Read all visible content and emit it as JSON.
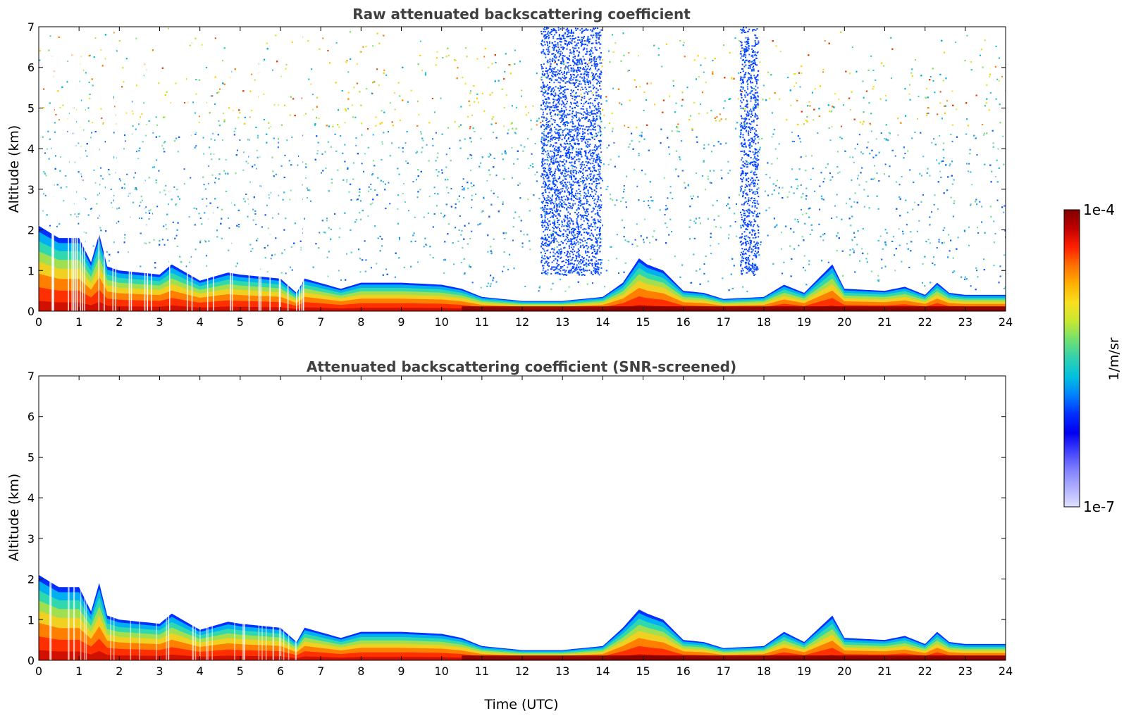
{
  "chart_data": [
    {
      "type": "heatmap",
      "id": "raw",
      "title": "Raw attenuated backscattering coefficient",
      "xlabel": "",
      "ylabel": "Altitude (km)",
      "xlim": [
        0,
        24
      ],
      "ylim": [
        0,
        7
      ],
      "xticks": [
        "0",
        "1",
        "2",
        "3",
        "4",
        "5",
        "6",
        "7",
        "8",
        "9",
        "10",
        "11",
        "12",
        "13",
        "14",
        "15",
        "16",
        "17",
        "18",
        "19",
        "20",
        "21",
        "22",
        "23",
        "24"
      ],
      "yticks": [
        "0",
        "1",
        "2",
        "3",
        "4",
        "5",
        "6",
        "7"
      ],
      "noise": true,
      "boundary_layer_top_km": {
        "x": [
          0,
          0.5,
          1.0,
          1.3,
          1.5,
          1.7,
          2.0,
          3.0,
          3.3,
          4.0,
          4.7,
          5.0,
          6.0,
          6.4,
          6.6,
          7.5,
          8.0,
          9.0,
          10.0,
          10.5,
          11.0,
          12.0,
          13.0,
          14.0,
          14.5,
          14.9,
          15.1,
          15.5,
          16.0,
          16.5,
          17.0,
          18.0,
          18.5,
          19.0,
          19.7,
          20.0,
          21.0,
          21.5,
          22.0,
          22.3,
          22.6,
          23.0,
          24.0
        ],
        "y": [
          2.1,
          1.8,
          1.8,
          1.2,
          1.9,
          1.1,
          1.0,
          0.9,
          1.15,
          0.75,
          0.95,
          0.9,
          0.8,
          0.45,
          0.8,
          0.55,
          0.7,
          0.7,
          0.65,
          0.55,
          0.35,
          0.25,
          0.25,
          0.35,
          0.7,
          1.3,
          1.15,
          1.0,
          0.5,
          0.45,
          0.3,
          0.35,
          0.65,
          0.45,
          1.15,
          0.55,
          0.5,
          0.6,
          0.4,
          0.7,
          0.45,
          0.4,
          0.4
        ]
      },
      "noise_free_gaps_h": [
        [
          12.45,
          12.6
        ],
        [
          13.85,
          14.05
        ],
        [
          17.85,
          17.95
        ]
      ],
      "blue_noise_columns_h": [
        [
          12.6,
          13.95
        ],
        [
          17.4,
          17.85
        ],
        [
          12.45,
          12.6
        ]
      ]
    },
    {
      "type": "heatmap",
      "id": "snr",
      "title": "Attenuated backscattering coefficient (SNR-screened)",
      "xlabel": "Time (UTC)",
      "ylabel": "Altitude (km)",
      "xlim": [
        0,
        24
      ],
      "ylim": [
        0,
        7
      ],
      "xticks": [
        "0",
        "1",
        "2",
        "3",
        "4",
        "5",
        "6",
        "7",
        "8",
        "9",
        "10",
        "11",
        "12",
        "13",
        "14",
        "15",
        "16",
        "17",
        "18",
        "19",
        "20",
        "21",
        "22",
        "23",
        "24"
      ],
      "yticks": [
        "0",
        "1",
        "2",
        "3",
        "4",
        "5",
        "6",
        "7"
      ],
      "noise": false,
      "boundary_layer_top_km": {
        "x": [
          0,
          0.5,
          1.0,
          1.3,
          1.5,
          1.7,
          2.0,
          3.0,
          3.3,
          4.0,
          4.7,
          5.0,
          6.0,
          6.4,
          6.6,
          7.5,
          8.0,
          9.0,
          10.0,
          10.5,
          11.0,
          12.0,
          13.0,
          14.0,
          14.5,
          14.9,
          15.1,
          15.5,
          16.0,
          16.5,
          17.0,
          18.0,
          18.5,
          19.0,
          19.7,
          20.0,
          21.0,
          21.5,
          22.0,
          22.3,
          22.6,
          23.0,
          24.0
        ],
        "y": [
          2.1,
          1.8,
          1.8,
          1.2,
          1.9,
          1.1,
          1.0,
          0.9,
          1.15,
          0.75,
          0.95,
          0.9,
          0.8,
          0.45,
          0.8,
          0.55,
          0.7,
          0.7,
          0.65,
          0.55,
          0.35,
          0.25,
          0.25,
          0.35,
          0.8,
          1.25,
          1.15,
          1.0,
          0.5,
          0.45,
          0.3,
          0.35,
          0.7,
          0.45,
          1.1,
          0.55,
          0.5,
          0.6,
          0.4,
          0.7,
          0.45,
          0.4,
          0.4
        ]
      }
    }
  ],
  "colorbar": {
    "label": "1/m/sr",
    "max_label": "1e-4",
    "min_label": "1e-7",
    "colors": [
      "#7f0000",
      "#c00000",
      "#ff2000",
      "#ff7000",
      "#ffb000",
      "#f8e020",
      "#c8e830",
      "#70e070",
      "#30d0b0",
      "#00c0e0",
      "#0080ff",
      "#0030ff",
      "#0000f0",
      "#4040ff",
      "#8080ff",
      "#b0b0ff",
      "#e0e0ff"
    ]
  }
}
